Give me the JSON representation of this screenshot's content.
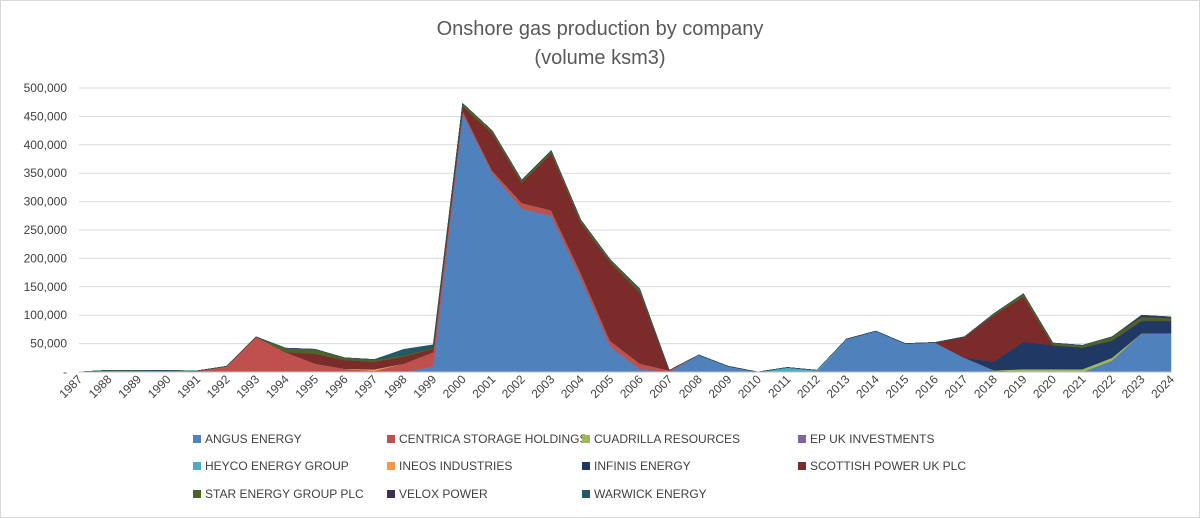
{
  "chart_data": {
    "type": "area",
    "stacked": true,
    "title_line1": "Onshore gas production by company",
    "title_line2": "(volume ksm3)",
    "xlabel": "",
    "ylabel": "",
    "ylim": [
      0,
      500000
    ],
    "yticks": [
      "-",
      "50,000",
      "100,000",
      "150,000",
      "200,000",
      "250,000",
      "300,000",
      "350,000",
      "400,000",
      "450,000",
      "500,000"
    ],
    "grid": true,
    "legend_position": "bottom",
    "categories": [
      "1987",
      "1988",
      "1989",
      "1990",
      "1991",
      "1992",
      "1993",
      "1994",
      "1995",
      "1996",
      "1997",
      "1998",
      "1999",
      "2000",
      "2001",
      "2002",
      "2003",
      "2004",
      "2005",
      "2006",
      "2007",
      "2008",
      "2009",
      "2010",
      "2011",
      "2012",
      "2013",
      "2014",
      "2015",
      "2016",
      "2017",
      "2018",
      "2019",
      "2020",
      "2021",
      "2022",
      "2023",
      "2024"
    ],
    "series": [
      {
        "name": "ANGUS ENERGY",
        "color": "#4f81bd",
        "values": [
          0,
          0,
          0,
          0,
          0,
          0,
          0,
          0,
          0,
          0,
          0,
          0,
          10000,
          455000,
          350000,
          288000,
          275000,
          165000,
          45000,
          5000,
          0,
          30000,
          10000,
          0,
          0,
          0,
          58000,
          72000,
          50000,
          52000,
          25000,
          3000,
          0,
          0,
          0,
          20000,
          68000,
          68000
        ]
      },
      {
        "name": "CENTRICA STORAGE HOLDINGS",
        "color": "#c0504d",
        "values": [
          0,
          3000,
          3000,
          2500,
          2000,
          10000,
          62000,
          35000,
          15000,
          6000,
          2000,
          15000,
          25000,
          5000,
          5000,
          10000,
          10000,
          10000,
          10000,
          10000,
          3000,
          0,
          0,
          0,
          0,
          0,
          0,
          0,
          0,
          0,
          0,
          0,
          0,
          0,
          0,
          0,
          0,
          0
        ]
      },
      {
        "name": "CUADRILLA RESOURCES",
        "color": "#9bbb59",
        "values": [
          0,
          0,
          0,
          0,
          0,
          0,
          0,
          0,
          0,
          0,
          0,
          0,
          0,
          0,
          0,
          0,
          0,
          0,
          0,
          0,
          0,
          0,
          0,
          0,
          0,
          0,
          0,
          0,
          0,
          0,
          0,
          0,
          5000,
          5000,
          5000,
          5000,
          0,
          0
        ]
      },
      {
        "name": "EP UK INVESTMENTS",
        "color": "#8064a2",
        "values": [
          0,
          0,
          0,
          0,
          0,
          0,
          0,
          0,
          0,
          0,
          0,
          0,
          0,
          0,
          0,
          0,
          0,
          0,
          0,
          0,
          0,
          0,
          0,
          0,
          0,
          0,
          0,
          0,
          0,
          0,
          0,
          0,
          0,
          0,
          0,
          0,
          0,
          0
        ]
      },
      {
        "name": "HEYCO ENERGY GROUP",
        "color": "#4bacc6",
        "values": [
          0,
          0,
          0,
          0,
          0,
          0,
          0,
          0,
          0,
          0,
          0,
          0,
          0,
          0,
          0,
          0,
          0,
          0,
          0,
          0,
          0,
          0,
          0,
          0,
          8000,
          3000,
          0,
          0,
          0,
          0,
          0,
          0,
          0,
          0,
          0,
          0,
          0,
          0
        ]
      },
      {
        "name": "INEOS INDUSTRIES",
        "color": "#f79646",
        "values": [
          0,
          0,
          0,
          0,
          0,
          0,
          0,
          0,
          0,
          0,
          3000,
          0,
          0,
          0,
          0,
          0,
          0,
          0,
          0,
          0,
          0,
          0,
          0,
          0,
          0,
          0,
          0,
          0,
          0,
          0,
          0,
          0,
          0,
          0,
          0,
          0,
          0,
          0
        ]
      },
      {
        "name": "INFINIS ENERGY",
        "color": "#1f3864",
        "values": [
          0,
          0,
          0,
          0,
          0,
          0,
          0,
          0,
          0,
          0,
          0,
          0,
          0,
          0,
          0,
          0,
          0,
          0,
          0,
          0,
          0,
          0,
          0,
          0,
          0,
          0,
          0,
          0,
          0,
          0,
          0,
          15000,
          48000,
          42000,
          38000,
          30000,
          22000,
          22000
        ]
      },
      {
        "name": "SCOTTISH POWER UK PLC",
        "color": "#7b2c2a",
        "values": [
          0,
          0,
          0,
          0,
          0,
          0,
          0,
          0,
          17000,
          15000,
          13000,
          12000,
          6000,
          8000,
          65000,
          35000,
          100000,
          88000,
          138000,
          125000,
          0,
          0,
          0,
          0,
          0,
          0,
          0,
          0,
          0,
          0,
          37000,
          82000,
          80000,
          0,
          0,
          0,
          0,
          0
        ]
      },
      {
        "name": "STAR ENERGY GROUP PLC",
        "color": "#4f6228",
        "values": [
          0,
          0,
          0,
          0,
          0,
          0,
          0,
          7000,
          8000,
          4000,
          4000,
          3000,
          2000,
          5000,
          5000,
          5000,
          5000,
          5000,
          5000,
          5000,
          0,
          0,
          0,
          0,
          0,
          0,
          0,
          0,
          0,
          0,
          0,
          3000,
          5000,
          4000,
          4000,
          7000,
          7000,
          5000
        ]
      },
      {
        "name": "VELOX POWER",
        "color": "#3f3151",
        "values": [
          0,
          0,
          0,
          0,
          0,
          0,
          0,
          0,
          0,
          0,
          0,
          0,
          0,
          0,
          0,
          0,
          0,
          0,
          0,
          0,
          0,
          0,
          0,
          0,
          0,
          0,
          0,
          0,
          0,
          0,
          0,
          0,
          0,
          0,
          0,
          0,
          3000,
          2000
        ]
      },
      {
        "name": "WARWICK ENERGY",
        "color": "#215967",
        "values": [
          0,
          0,
          0,
          0,
          0,
          0,
          0,
          0,
          0,
          0,
          0,
          10000,
          5000,
          0,
          0,
          0,
          0,
          0,
          0,
          2000,
          0,
          0,
          0,
          0,
          0,
          0,
          0,
          0,
          0,
          0,
          0,
          0,
          0,
          0,
          0,
          0,
          0,
          0
        ]
      }
    ]
  }
}
